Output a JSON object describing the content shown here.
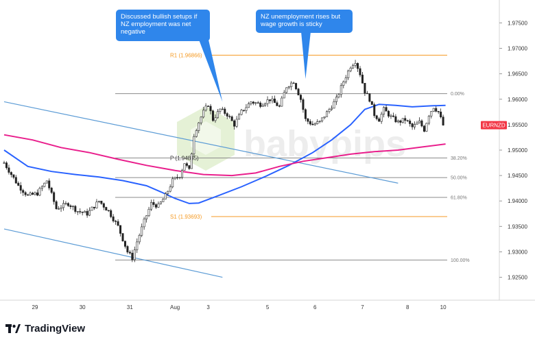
{
  "chart_data": {
    "type": "candlestick",
    "symbol": "EURNZD",
    "price_axis": {
      "ticks": [
        "1.97500",
        "1.97000",
        "1.96500",
        "1.96000",
        "1.95500",
        "1.95000",
        "1.94500",
        "1.94000",
        "1.93500",
        "1.93000",
        "1.92500"
      ],
      "range": [
        1.9205,
        1.9795
      ],
      "last_price_label": "EURNZD",
      "last_price": 1.9549
    },
    "time_axis": {
      "ticks": [
        {
          "label": "29",
          "bar": 13
        },
        {
          "label": "30",
          "bar": 33
        },
        {
          "label": "31",
          "bar": 53
        },
        {
          "label": "Aug",
          "bar": 72
        },
        {
          "label": "3",
          "bar": 86
        },
        {
          "label": "5",
          "bar": 111
        },
        {
          "label": "6",
          "bar": 131
        },
        {
          "label": "7",
          "bar": 151
        },
        {
          "label": "8",
          "bar": 170
        },
        {
          "label": "10",
          "bar": 185
        }
      ],
      "bar_count": 187
    },
    "price_path": [
      [
        0,
        1.9475
      ],
      [
        6,
        1.943
      ],
      [
        10,
        1.941
      ],
      [
        14,
        1.9415
      ],
      [
        18,
        1.944
      ],
      [
        22,
        1.9385
      ],
      [
        27,
        1.9395
      ],
      [
        31,
        1.938
      ],
      [
        35,
        1.9375
      ],
      [
        40,
        1.94
      ],
      [
        44,
        1.938
      ],
      [
        48,
        1.935
      ],
      [
        52,
        1.93
      ],
      [
        54,
        1.9288
      ],
      [
        56,
        1.932
      ],
      [
        59,
        1.936
      ],
      [
        62,
        1.9395
      ],
      [
        65,
        1.939
      ],
      [
        68,
        1.941
      ],
      [
        71,
        1.944
      ],
      [
        74,
        1.945
      ],
      [
        76,
        1.9475
      ],
      [
        78,
        1.946
      ],
      [
        80,
        1.953
      ],
      [
        82,
        1.9555
      ],
      [
        84,
        1.9575
      ],
      [
        86,
        1.959
      ],
      [
        88,
        1.956
      ],
      [
        91,
        1.958
      ],
      [
        94,
        1.957
      ],
      [
        97,
        1.955
      ],
      [
        100,
        1.9575
      ],
      [
        104,
        1.9595
      ],
      [
        108,
        1.959
      ],
      [
        112,
        1.96
      ],
      [
        116,
        1.9585
      ],
      [
        119,
        1.9625
      ],
      [
        122,
        1.9635
      ],
      [
        125,
        1.96
      ],
      [
        127,
        1.956
      ],
      [
        130,
        1.955
      ],
      [
        133,
        1.9555
      ],
      [
        137,
        1.958
      ],
      [
        140,
        1.96
      ],
      [
        143,
        1.9635
      ],
      [
        146,
        1.9665
      ],
      [
        148,
        1.9675
      ],
      [
        150,
        1.965
      ],
      [
        152,
        1.9615
      ],
      [
        154,
        1.96
      ],
      [
        156,
        1.957
      ],
      [
        158,
        1.956
      ],
      [
        160,
        1.958
      ],
      [
        163,
        1.9565
      ],
      [
        166,
        1.9555
      ],
      [
        169,
        1.956
      ],
      [
        172,
        1.9545
      ],
      [
        175,
        1.9555
      ],
      [
        177,
        1.954
      ],
      [
        179,
        1.957
      ],
      [
        181,
        1.9585
      ],
      [
        183,
        1.9575
      ],
      [
        185,
        1.9549
      ]
    ],
    "moving_averages": [
      {
        "color": "#2962ff",
        "points": [
          [
            0,
            1.95
          ],
          [
            10,
            1.9468
          ],
          [
            20,
            1.9458
          ],
          [
            30,
            1.9452
          ],
          [
            40,
            1.9447
          ],
          [
            50,
            1.944
          ],
          [
            60,
            1.943
          ],
          [
            66,
            1.9418
          ],
          [
            72,
            1.9405
          ],
          [
            78,
            1.9395
          ],
          [
            82,
            1.9396
          ],
          [
            90,
            1.941
          ],
          [
            100,
            1.9428
          ],
          [
            110,
            1.9448
          ],
          [
            120,
            1.947
          ],
          [
            130,
            1.9495
          ],
          [
            138,
            1.952
          ],
          [
            146,
            1.955
          ],
          [
            152,
            1.958
          ],
          [
            158,
            1.959
          ],
          [
            165,
            1.9588
          ],
          [
            172,
            1.9585
          ],
          [
            180,
            1.9587
          ],
          [
            186,
            1.9588
          ]
        ]
      },
      {
        "color": "#e91e8c",
        "points": [
          [
            0,
            1.953
          ],
          [
            12,
            1.952
          ],
          [
            24,
            1.9505
          ],
          [
            36,
            1.9495
          ],
          [
            48,
            1.9482
          ],
          [
            60,
            1.947
          ],
          [
            72,
            1.946
          ],
          [
            84,
            1.9452
          ],
          [
            96,
            1.945
          ],
          [
            106,
            1.9455
          ],
          [
            116,
            1.9468
          ],
          [
            126,
            1.9478
          ],
          [
            136,
            1.9485
          ],
          [
            146,
            1.9492
          ],
          [
            156,
            1.9497
          ],
          [
            166,
            1.95
          ],
          [
            176,
            1.9506
          ],
          [
            186,
            1.9512
          ]
        ]
      }
    ],
    "horizontal_levels": [
      {
        "label": "R1 (1.96866)",
        "price": 1.96866,
        "kind": "pivot",
        "color": "#f59a23"
      },
      {
        "label": "0.00%",
        "price": 1.9611,
        "kind": "fib",
        "color": "#888888"
      },
      {
        "label": "P (1.94845)",
        "price": 1.94845,
        "kind": "pivot",
        "color": "#222222"
      },
      {
        "label": "38.20%",
        "price": 1.94845,
        "kind": "fib",
        "color": "#888888"
      },
      {
        "label": "50.00%",
        "price": 1.9446,
        "kind": "fib",
        "color": "#888888"
      },
      {
        "label": "61.80%",
        "price": 1.9407,
        "kind": "fib",
        "color": "#888888"
      },
      {
        "label": "S1 (1.93693)",
        "price": 1.93693,
        "kind": "pivot",
        "color": "#f59a23"
      },
      {
        "label": "100.00%",
        "price": 1.9284,
        "kind": "fib",
        "color": "#888888"
      }
    ],
    "trend_lines": [
      {
        "color": "#5b9bd5",
        "from": [
          0,
          1.9595
        ],
        "to": [
          166,
          1.9435
        ]
      },
      {
        "color": "#5b9bd5",
        "from": [
          0,
          1.9345
        ],
        "to": [
          92,
          1.925
        ]
      }
    ],
    "annotations": [
      {
        "text_lines": [
          "Discussed bullish setups if",
          "NZ employment was net",
          "negative"
        ],
        "anchor_bar": 92,
        "anchor_price": 1.9595
      },
      {
        "text_lines": [
          "NZ unemployment rises but",
          "wage growth is sticky"
        ],
        "anchor_bar": 127,
        "anchor_price": 1.964
      }
    ],
    "watermark": "babypips"
  },
  "footer": {
    "logo_icon": "tradingview-logo-icon",
    "brand": "TradingView"
  }
}
